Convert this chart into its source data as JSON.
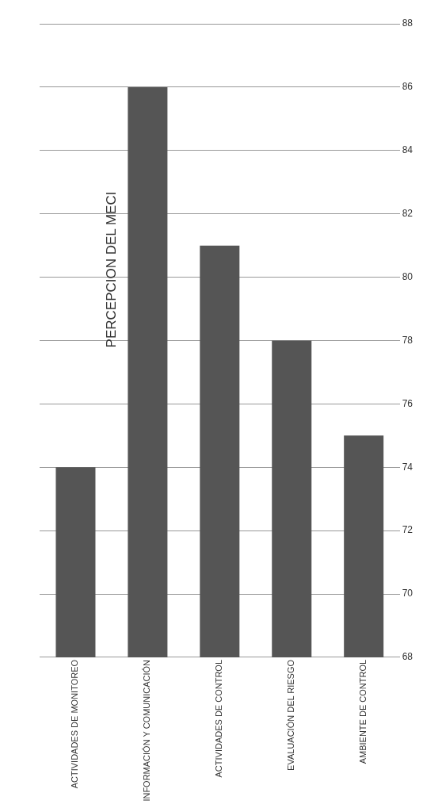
{
  "chart_data": {
    "type": "bar",
    "title": "PERCEPCION DEL MECI",
    "categories": [
      "ACTIVIDADES DE MONITOREO",
      "INFORMACIÓN Y COMUNICACIÓN",
      "ACTIVIDADES DE CONTROL",
      "EVALUACIÓN DEL RIESGO",
      "AMBIENTE DE CONTROL"
    ],
    "values": [
      74,
      86,
      81,
      78,
      75
    ],
    "color": "#555555",
    "ylim": [
      68,
      88
    ],
    "yticks": [
      68,
      70,
      72,
      74,
      76,
      78,
      80,
      82,
      84,
      86,
      88
    ],
    "grid": "y",
    "legend": false
  }
}
